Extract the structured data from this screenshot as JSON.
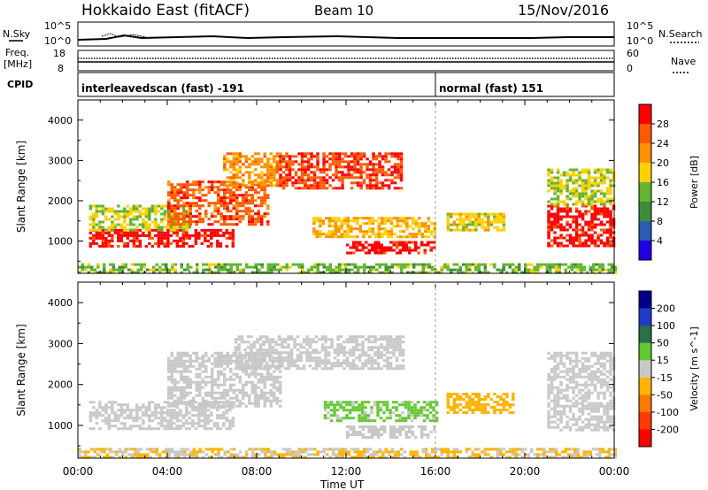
{
  "header": {
    "title": "Hokkaido East (fitACF)",
    "beam": "Beam 10",
    "date": "15/Nov/2016"
  },
  "noise_panel": {
    "left_label": "N.Sky",
    "right_label": "N.Search",
    "left_ticks": [
      "10^5",
      "10^0"
    ],
    "right_ticks": [
      "10^5",
      "10^0"
    ]
  },
  "freq_panel": {
    "left_label_line1": "Freq.",
    "left_label_line2": "[MHz]",
    "left_ticks": [
      "18",
      "8"
    ],
    "right_label": "Nave",
    "right_ticks": [
      "60",
      "0"
    ]
  },
  "cpid_panel": {
    "label": "CPID",
    "segments": [
      {
        "name": "interleavedscan (fast) -191",
        "start_hour": 0
      },
      {
        "name": "normal (fast) 151",
        "start_hour": 16
      }
    ]
  },
  "colors": {
    "power_scale": [
      "#1e00e6",
      "#2a5ab4",
      "#3c8c3c",
      "#64b432",
      "#ffd000",
      "#ff9000",
      "#ff5a00",
      "#ff0000"
    ],
    "velocity_scale": [
      "#00008c",
      "#1e3cc8",
      "#2a6e4a",
      "#64c832",
      "#c8c8c8",
      "#ffb400",
      "#ff7800",
      "#ff3c00",
      "#ff0000"
    ]
  },
  "chart_data": [
    {
      "type": "heatmap",
      "name": "Power",
      "ylabel": "Slant Range [km]",
      "xlabel": "Time UT",
      "x_ticks": [
        "00:00",
        "04:00",
        "08:00",
        "12:00",
        "16:00",
        "20:00",
        "00:00"
      ],
      "xlim_hours": [
        0,
        24
      ],
      "y_ticks": [
        1000,
        2000,
        3000,
        4000
      ],
      "ylim": [
        200,
        4500
      ],
      "colorbar": {
        "label": "Power [dB]",
        "ticks": [
          4,
          8,
          12,
          16,
          20,
          24,
          28
        ],
        "range": [
          0,
          32
        ]
      },
      "regions": [
        {
          "t": [
            0.5,
            7.0
          ],
          "r": [
            900,
            1300
          ],
          "v": 30
        },
        {
          "t": [
            0.5,
            5.0
          ],
          "r": [
            1300,
            1900
          ],
          "v": 16
        },
        {
          "t": [
            4.0,
            8.5
          ],
          "r": [
            1400,
            2500
          ],
          "v": 26
        },
        {
          "t": [
            6.5,
            9.0
          ],
          "r": [
            2400,
            3200
          ],
          "v": 22
        },
        {
          "t": [
            9.0,
            14.5
          ],
          "r": [
            2300,
            3200
          ],
          "v": 28
        },
        {
          "t": [
            10.5,
            16.0
          ],
          "r": [
            1100,
            1600
          ],
          "v": 20
        },
        {
          "t": [
            12.0,
            16.0
          ],
          "r": [
            700,
            1000
          ],
          "v": 30
        },
        {
          "t": [
            16.5,
            19.0
          ],
          "r": [
            1300,
            1700
          ],
          "v": 18
        },
        {
          "t": [
            21.0,
            24.0
          ],
          "r": [
            900,
            1900
          ],
          "v": 30
        },
        {
          "t": [
            21.0,
            24.0
          ],
          "r": [
            1900,
            2800
          ],
          "v": 16
        },
        {
          "t": [
            0.0,
            24.0
          ],
          "r": [
            200,
            450
          ],
          "v": 14
        }
      ]
    },
    {
      "type": "heatmap",
      "name": "Velocity",
      "ylabel": "Slant Range [km]",
      "xlabel": "Time UT",
      "x_ticks": [
        "00:00",
        "04:00",
        "08:00",
        "12:00",
        "16:00",
        "20:00",
        "00:00"
      ],
      "xlim_hours": [
        0,
        24
      ],
      "y_ticks": [
        1000,
        2000,
        3000,
        4000
      ],
      "ylim": [
        200,
        4500
      ],
      "colorbar": {
        "label": "Velocity [m s^-1]",
        "ticks": [
          200,
          100,
          50,
          15,
          -15,
          -50,
          -100,
          -200
        ],
        "range": [
          -250,
          250
        ]
      },
      "regions": [
        {
          "t": [
            0.5,
            7.0
          ],
          "r": [
            900,
            1600
          ],
          "v": 0
        },
        {
          "t": [
            4.0,
            9.0
          ],
          "r": [
            1500,
            2800
          ],
          "v": 0
        },
        {
          "t": [
            7.0,
            14.5
          ],
          "r": [
            2400,
            3200
          ],
          "v": 0
        },
        {
          "t": [
            11.0,
            16.0
          ],
          "r": [
            1100,
            1600
          ],
          "v": 40
        },
        {
          "t": [
            12.0,
            16.0
          ],
          "r": [
            700,
            1000
          ],
          "v": 0
        },
        {
          "t": [
            16.5,
            19.5
          ],
          "r": [
            1300,
            1800
          ],
          "v": -60
        },
        {
          "t": [
            21.0,
            24.0
          ],
          "r": [
            900,
            2800
          ],
          "v": 0
        },
        {
          "t": [
            0.0,
            24.0
          ],
          "r": [
            200,
            450
          ],
          "v": -30
        }
      ]
    }
  ]
}
